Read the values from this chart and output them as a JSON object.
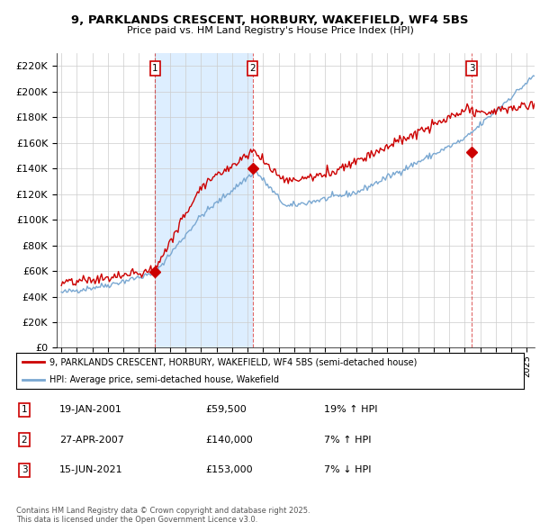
{
  "title": "9, PARKLANDS CRESCENT, HORBURY, WAKEFIELD, WF4 5BS",
  "subtitle": "Price paid vs. HM Land Registry's House Price Index (HPI)",
  "ylim": [
    0,
    230000
  ],
  "yticks": [
    0,
    20000,
    40000,
    60000,
    80000,
    100000,
    120000,
    140000,
    160000,
    180000,
    200000,
    220000
  ],
  "xlim_start": 1994.7,
  "xlim_end": 2025.5,
  "sale_dates": [
    2001.05,
    2007.32,
    2021.46
  ],
  "sale_prices": [
    59500,
    140000,
    153000
  ],
  "sale_labels": [
    "1",
    "2",
    "3"
  ],
  "legend_entries": [
    "9, PARKLANDS CRESCENT, HORBURY, WAKEFIELD, WF4 5BS (semi-detached house)",
    "HPI: Average price, semi-detached house, Wakefield"
  ],
  "table_rows": [
    [
      "1",
      "19-JAN-2001",
      "£59,500",
      "19% ↑ HPI"
    ],
    [
      "2",
      "27-APR-2007",
      "£140,000",
      "7% ↑ HPI"
    ],
    [
      "3",
      "15-JUN-2021",
      "£153,000",
      "7% ↓ HPI"
    ]
  ],
  "footer": "Contains HM Land Registry data © Crown copyright and database right 2025.\nThis data is licensed under the Open Government Licence v3.0.",
  "red_color": "#cc0000",
  "blue_color": "#7aa8d2",
  "shade_color": "#ddeeff",
  "grid_color": "#cccccc"
}
